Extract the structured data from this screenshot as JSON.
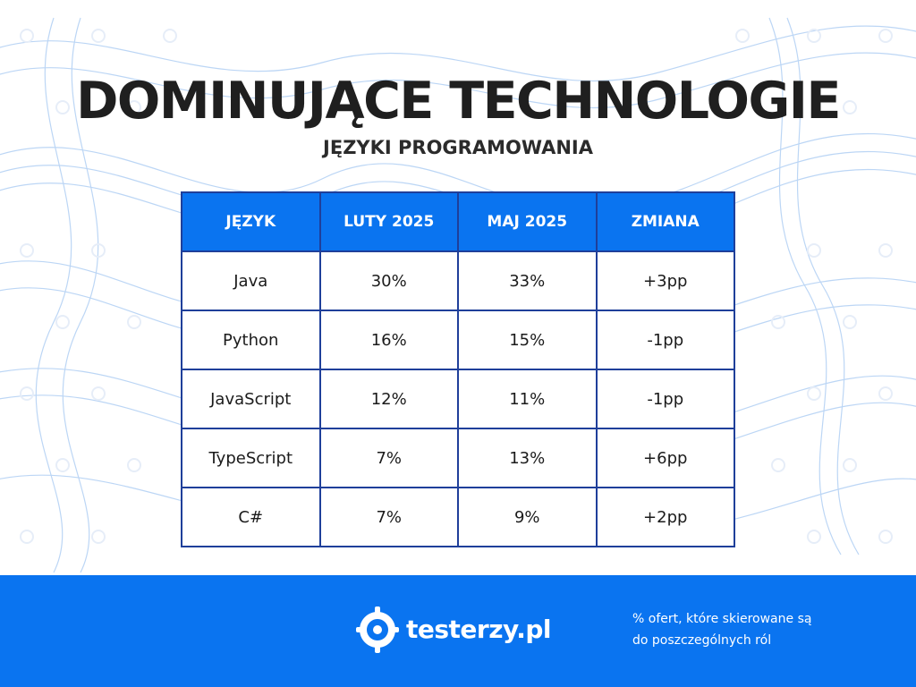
{
  "header": {
    "title": "DOMINUJĄCE TECHNOLOGIE",
    "subtitle": "JĘZYKI PROGRAMOWANIA"
  },
  "table": {
    "columns": [
      "JĘZYK",
      "LUTY 2025",
      "MAJ 2025",
      "ZMIANA"
    ],
    "rows": [
      [
        "Java",
        "30%",
        "33%",
        "+3pp"
      ],
      [
        "Python",
        "16%",
        "15%",
        "-1pp"
      ],
      [
        "JavaScript",
        "12%",
        "11%",
        "-1pp"
      ],
      [
        "TypeScript",
        "7%",
        "13%",
        "+6pp"
      ],
      [
        "C#",
        "7%",
        "9%",
        "+2pp"
      ]
    ]
  },
  "footer": {
    "brand": "testerzy.pl",
    "note_line1": "% ofert, które skierowane są",
    "note_line2": "do poszczególnych ról"
  },
  "colors": {
    "accent": "#0a74f0",
    "border": "#1f3f9a",
    "text": "#1f1f1f"
  },
  "icons": [
    "logo-gear-icon"
  ]
}
